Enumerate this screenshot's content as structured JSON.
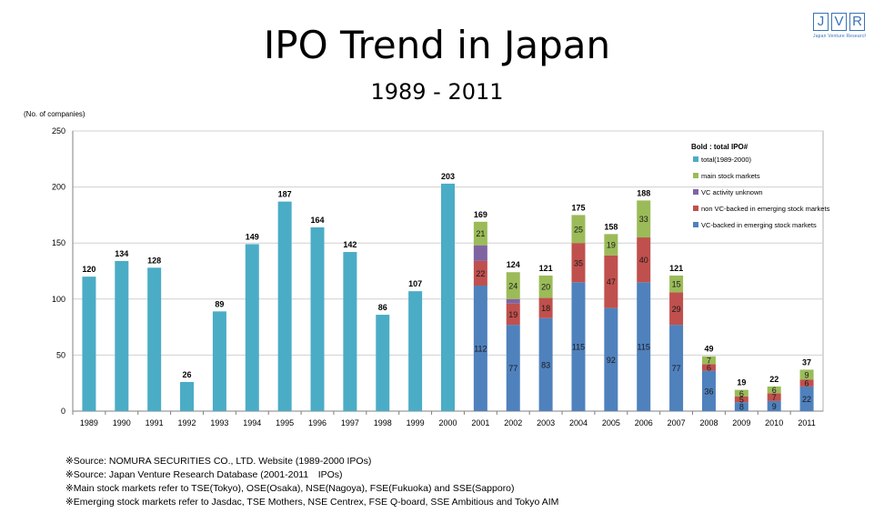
{
  "header": {
    "title": "IPO Trend in Japan",
    "subtitle": "1989 - 2011",
    "logo_letters": [
      "J",
      "V",
      "R"
    ],
    "logo_tagline": "Japan Venture Research"
  },
  "colors": {
    "total": "#4bacc6",
    "main": "#9bbb59",
    "unknown": "#8064a2",
    "nonvc": "#c0504d",
    "vc": "#4f81bd",
    "grid": "#d0d0d0",
    "logo": "#3a72b8"
  },
  "chart_data": {
    "type": "bar",
    "unit_label": "(No. of companies)",
    "ylim": [
      0,
      250
    ],
    "yticks": [
      0,
      50,
      100,
      150,
      200,
      250
    ],
    "grid": true,
    "legend_position": "top-right",
    "legend_title": "Bold : total IPO#",
    "legend": [
      {
        "key": "total",
        "label": "total(1989-2000)"
      },
      {
        "key": "main",
        "label": "main stock markets"
      },
      {
        "key": "unknown",
        "label": "VC activity unknown"
      },
      {
        "key": "nonvc",
        "label": "non VC-backed in emerging stock markets"
      },
      {
        "key": "vc",
        "label": "VC-backed in emerging stock markets"
      }
    ],
    "categories": [
      "1989",
      "1990",
      "1991",
      "1992",
      "1993",
      "1994",
      "1995",
      "1996",
      "1997",
      "1998",
      "1999",
      "2000",
      "2001",
      "2002",
      "2003",
      "2004",
      "2005",
      "2006",
      "2007",
      "2008",
      "2009",
      "2010",
      "2011"
    ],
    "totals": [
      120,
      134,
      128,
      26,
      89,
      149,
      187,
      164,
      142,
      86,
      107,
      203,
      169,
      124,
      121,
      175,
      158,
      188,
      121,
      49,
      19,
      22,
      37
    ],
    "series": [
      {
        "key": "vc",
        "name": "VC-backed in emerging stock markets",
        "values": [
          null,
          null,
          null,
          null,
          null,
          null,
          null,
          null,
          null,
          null,
          null,
          null,
          112,
          77,
          83,
          115,
          92,
          115,
          77,
          36,
          8,
          9,
          22
        ]
      },
      {
        "key": "nonvc",
        "name": "non VC-backed in emerging stock markets",
        "values": [
          null,
          null,
          null,
          null,
          null,
          null,
          null,
          null,
          null,
          null,
          null,
          null,
          22,
          19,
          18,
          35,
          47,
          40,
          29,
          6,
          5,
          7,
          6
        ]
      },
      {
        "key": "unknown",
        "name": "VC activity unknown",
        "values": [
          null,
          null,
          null,
          null,
          null,
          null,
          null,
          null,
          null,
          null,
          null,
          null,
          14,
          4,
          0,
          0,
          0,
          0,
          0,
          0,
          0,
          0,
          0
        ]
      },
      {
        "key": "main",
        "name": "main stock markets",
        "values": [
          null,
          null,
          null,
          null,
          null,
          null,
          null,
          null,
          null,
          null,
          null,
          null,
          21,
          24,
          20,
          25,
          19,
          33,
          15,
          7,
          6,
          6,
          9
        ]
      }
    ],
    "segment_labels": {
      "vc": [
        null,
        null,
        null,
        null,
        null,
        null,
        null,
        null,
        null,
        null,
        null,
        null,
        "112",
        "77",
        "83",
        "115",
        "92",
        "115",
        "77",
        "36",
        "8",
        "9",
        "22"
      ],
      "nonvc": [
        null,
        null,
        null,
        null,
        null,
        null,
        null,
        null,
        null,
        null,
        null,
        null,
        "22",
        "19",
        "18",
        "35",
        "47",
        "40",
        "29",
        "6",
        "5",
        "7",
        "6"
      ],
      "main": [
        null,
        null,
        null,
        null,
        null,
        null,
        null,
        null,
        null,
        null,
        null,
        null,
        "21",
        "24",
        "20",
        "25",
        "19",
        "33",
        "15",
        "7",
        "6",
        "6",
        "9"
      ]
    }
  },
  "notes": [
    "※Source: NOMURA SECURITIES CO., LTD. Website (1989-2000 IPOs)",
    "※Source: Japan Venture Research Database (2001-2011　IPOs)",
    "※Main stock markets refer to TSE(Tokyo), OSE(Osaka), NSE(Nagoya), FSE(Fukuoka) and SSE(Sapporo)",
    "※Emerging stock markets refer to Jasdac, TSE Mothers, NSE Centrex, FSE Q-board, SSE Ambitious and Tokyo AIM"
  ]
}
